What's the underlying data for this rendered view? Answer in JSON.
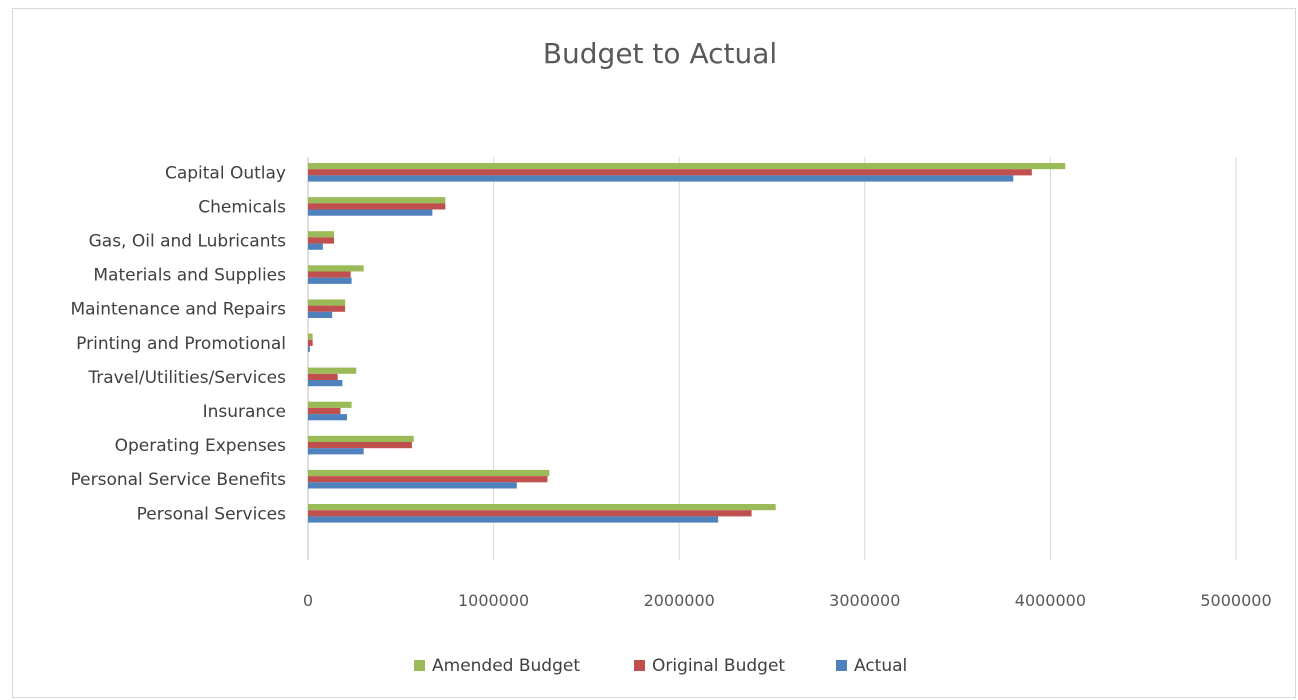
{
  "chart_data": {
    "type": "bar",
    "orientation": "horizontal",
    "title": "Budget to Actual",
    "xlabel": "",
    "ylabel": "",
    "xlim": [
      0,
      5000000
    ],
    "x_ticks": [
      "0",
      "1000000",
      "2000000",
      "3000000",
      "4000000",
      "5000000"
    ],
    "x_tick_values": [
      0,
      1000000,
      2000000,
      3000000,
      4000000,
      5000000
    ],
    "grid": "vertical",
    "legend_position": "bottom",
    "categories": [
      "Capital Outlay",
      "Chemicals",
      "Gas, Oil and Lubricants",
      "Materials and Supplies",
      "Maintenance and Repairs",
      "Printing and Promotional",
      "Travel/Utilities/Services",
      "Insurance",
      "Operating Expenses",
      "Personal Service Benefits",
      "Personal Services"
    ],
    "series": [
      {
        "name": "Amended Budget",
        "color": "#9bbb59",
        "values": [
          4080000,
          740000,
          140000,
          300000,
          200000,
          25000,
          260000,
          235000,
          570000,
          1300000,
          2520000
        ]
      },
      {
        "name": "Original Budget",
        "color": "#c0504d",
        "values": [
          3900000,
          740000,
          140000,
          230000,
          200000,
          25000,
          160000,
          175000,
          560000,
          1290000,
          2390000
        ]
      },
      {
        "name": "Actual",
        "color": "#4f81bd",
        "values": [
          3800000,
          670000,
          80000,
          235000,
          130000,
          10000,
          185000,
          210000,
          300000,
          1125000,
          2210000
        ]
      }
    ]
  }
}
